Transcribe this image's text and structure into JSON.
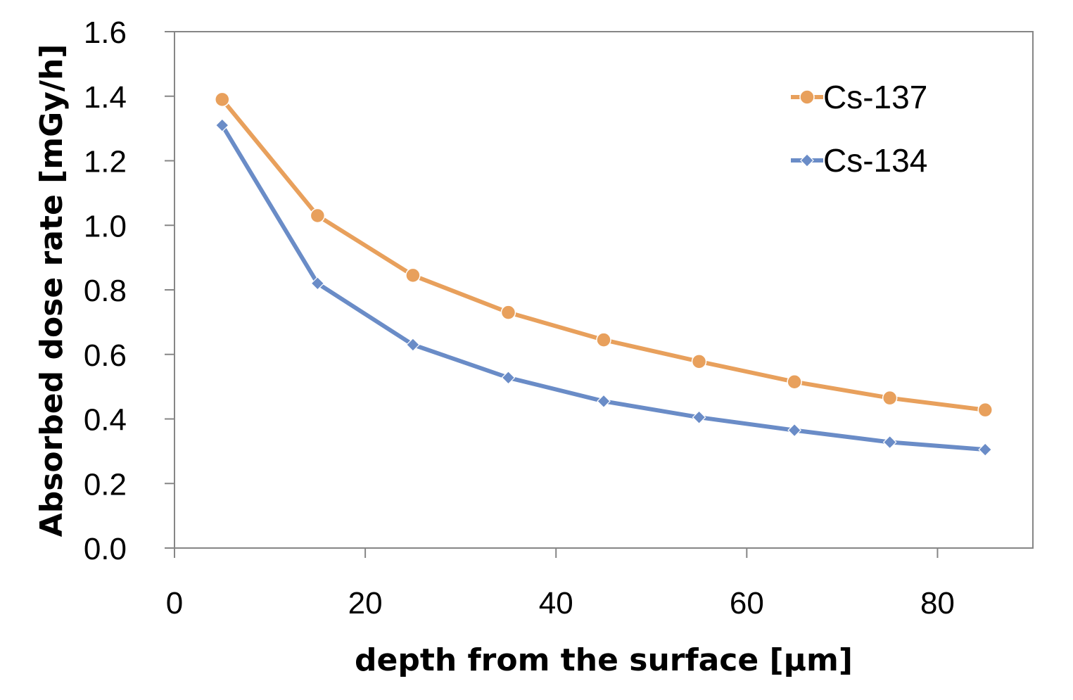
{
  "chart_data": {
    "type": "line",
    "title": "",
    "xlabel": "depth from the surface [µm]",
    "ylabel": "Absorbed dose rate [mGy/h]",
    "x": [
      5,
      15,
      25,
      35,
      45,
      55,
      65,
      75,
      85
    ],
    "series": [
      {
        "name": "Cs-137",
        "color": "#E8A05C",
        "marker": "circle",
        "values": [
          1.39,
          1.03,
          0.845,
          0.73,
          0.645,
          0.578,
          0.515,
          0.465,
          0.428
        ]
      },
      {
        "name": "Cs-134",
        "color": "#6A8CC7",
        "marker": "diamond",
        "values": [
          1.31,
          0.82,
          0.63,
          0.528,
          0.455,
          0.405,
          0.365,
          0.328,
          0.305
        ]
      }
    ],
    "xlim": [
      0,
      90
    ],
    "ylim": [
      0,
      1.6
    ],
    "xticks": [
      0,
      20,
      40,
      60,
      80
    ],
    "xtick_labels": [
      "0",
      "20",
      "40",
      "60",
      "80"
    ],
    "yticks": [
      0,
      0.2,
      0.4,
      0.6,
      0.8,
      1.0,
      1.2,
      1.4,
      1.6
    ],
    "ytick_labels": [
      "0.0",
      "0.2",
      "0.4",
      "0.6",
      "0.8",
      "1.0",
      "1.2",
      "1.4",
      "1.6"
    ],
    "grid": false,
    "legend_position": "top-right"
  }
}
